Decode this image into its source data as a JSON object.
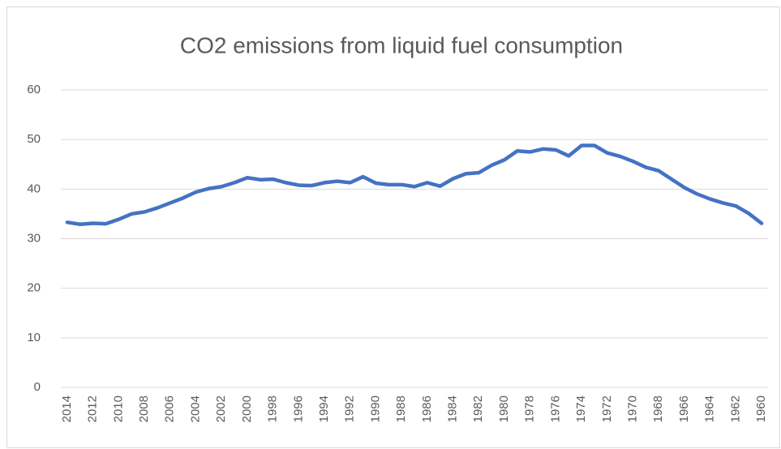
{
  "chart_data": {
    "type": "line",
    "title": "CO2 emissions from liquid fuel consumption",
    "categories": [
      "2014",
      null,
      "2012",
      null,
      "2010",
      null,
      "2008",
      null,
      "2006",
      null,
      "2004",
      null,
      "2002",
      null,
      "2000",
      null,
      "1998",
      null,
      "1996",
      null,
      "1994",
      null,
      "1992",
      null,
      "1990",
      null,
      "1988",
      null,
      "1986",
      null,
      "1984",
      null,
      "1982",
      null,
      "1980",
      null,
      "1978",
      null,
      "1976",
      null,
      "1974",
      null,
      "1972",
      null,
      "1970",
      null,
      "1968",
      null,
      "1966",
      null,
      "1964",
      null,
      "1962",
      null,
      "1960"
    ],
    "values": [
      33.3,
      32.9,
      33.1,
      33.0,
      33.9,
      35.0,
      35.4,
      36.2,
      37.2,
      38.2,
      39.4,
      40.1,
      40.5,
      41.3,
      42.3,
      41.9,
      42.0,
      41.3,
      40.8,
      40.7,
      41.3,
      41.6,
      41.3,
      42.5,
      41.2,
      40.9,
      40.9,
      40.5,
      41.3,
      40.6,
      42.1,
      43.1,
      43.3,
      44.8,
      45.9,
      47.7,
      47.5,
      48.1,
      47.9,
      46.7,
      48.8,
      48.8,
      47.3,
      46.6,
      45.6,
      44.4,
      43.7,
      42.0,
      40.3,
      39.0,
      38.0,
      37.2,
      36.6,
      35.1,
      33.1
    ],
    "color": "#4472c4",
    "ylim": [
      0,
      60
    ],
    "yticks": [
      0,
      10,
      20,
      30,
      40,
      50,
      60
    ],
    "grid": true
  }
}
